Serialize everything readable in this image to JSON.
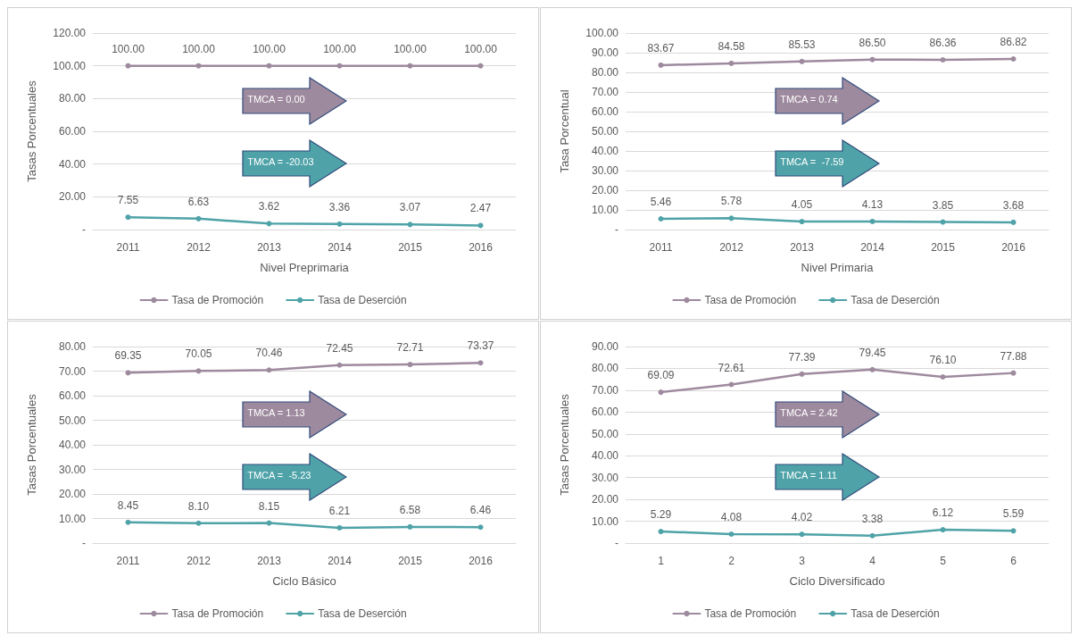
{
  "chart_data": [
    {
      "type": "line",
      "xlabel": "Nivel Preprimaria",
      "ylabel": "Tasas Porcentuales",
      "categories": [
        "2011",
        "2012",
        "2013",
        "2014",
        "2015",
        "2016"
      ],
      "series": [
        {
          "name": "Tasa de Promoción",
          "color": "#9e8a9e",
          "values": [
            100,
            100,
            100,
            100,
            100,
            100
          ],
          "value_labels": [
            "100.00",
            "100.00",
            "100.00",
            "100.00",
            "100.00",
            "100.00"
          ]
        },
        {
          "name": "Tasa de Deserción",
          "color": "#4fa3a8",
          "values": [
            7.55,
            6.63,
            3.62,
            3.36,
            3.07,
            2.47
          ],
          "value_labels": [
            "7.55",
            "6.63",
            "3.62",
            "3.36",
            "3.07",
            "2.47"
          ]
        }
      ],
      "ylim": [
        0,
        120
      ],
      "yticks": [
        {
          "value": 0,
          "label": "-"
        },
        {
          "value": 20,
          "label": "20.00"
        },
        {
          "value": 40,
          "label": "40.00"
        },
        {
          "value": 60,
          "label": "60.00"
        },
        {
          "value": 80,
          "label": "80.00"
        },
        {
          "value": 100,
          "label": "100.00"
        },
        {
          "value": 120,
          "label": "120.00"
        }
      ],
      "annotations": [
        "TMCA = 0.00",
        "TMCA = -20.03"
      ],
      "grid": "y",
      "legend": "bottom",
      "marker": "circle",
      "line_style": "solid"
    },
    {
      "type": "line",
      "xlabel": "Nivel Primaria",
      "ylabel": "Tasa Porcentual",
      "categories": [
        "2011",
        "2012",
        "2013",
        "2014",
        "2015",
        "2016"
      ],
      "series": [
        {
          "name": "Tasa de Promoción",
          "color": "#9e8a9e",
          "values": [
            83.67,
            84.58,
            85.53,
            86.5,
            86.36,
            86.82
          ],
          "value_labels": [
            "83.67",
            "84.58",
            "85.53",
            "86.50",
            "86.36",
            "86.82"
          ]
        },
        {
          "name": "Tasa de Deserción",
          "color": "#4fa3a8",
          "values": [
            5.46,
            5.78,
            4.05,
            4.13,
            3.85,
            3.68
          ],
          "value_labels": [
            "5.46",
            "5.78",
            "4.05",
            "4.13",
            "3.85",
            "3.68"
          ]
        }
      ],
      "ylim": [
        0,
        100
      ],
      "yticks": [
        {
          "value": 0,
          "label": "-"
        },
        {
          "value": 10,
          "label": "10.00"
        },
        {
          "value": 20,
          "label": "20.00"
        },
        {
          "value": 30,
          "label": "30.00"
        },
        {
          "value": 40,
          "label": "40.00"
        },
        {
          "value": 50,
          "label": "50.00"
        },
        {
          "value": 60,
          "label": "60.00"
        },
        {
          "value": 70,
          "label": "70.00"
        },
        {
          "value": 80,
          "label": "80.00"
        },
        {
          "value": 90,
          "label": "90.00"
        },
        {
          "value": 100,
          "label": "100.00"
        }
      ],
      "annotations": [
        "TMCA = 0.74",
        "TMCA =  -7.59"
      ],
      "grid": "y",
      "legend": "bottom",
      "marker": "circle",
      "line_style": "solid"
    },
    {
      "type": "line",
      "xlabel": "Ciclo Básico",
      "ylabel": "Tasas Porcentuales",
      "categories": [
        "2011",
        "2012",
        "2013",
        "2014",
        "2015",
        "2016"
      ],
      "series": [
        {
          "name": "Tasa de Promoción",
          "color": "#9e8a9e",
          "values": [
            69.35,
            70.05,
            70.46,
            72.45,
            72.71,
            73.37
          ],
          "value_labels": [
            "69.35",
            "70.05",
            "70.46",
            "72.45",
            "72.71",
            "73.37"
          ]
        },
        {
          "name": "Tasa de Deserción",
          "color": "#4fa3a8",
          "values": [
            8.45,
            8.1,
            8.15,
            6.21,
            6.58,
            6.46
          ],
          "value_labels": [
            "8.45",
            "8.10",
            "8.15",
            "6.21",
            "6.58",
            "6.46"
          ]
        }
      ],
      "ylim": [
        0,
        80
      ],
      "yticks": [
        {
          "value": 0,
          "label": "-"
        },
        {
          "value": 10,
          "label": "10.00"
        },
        {
          "value": 20,
          "label": "20.00"
        },
        {
          "value": 30,
          "label": "30.00"
        },
        {
          "value": 40,
          "label": "40.00"
        },
        {
          "value": 50,
          "label": "50.00"
        },
        {
          "value": 60,
          "label": "60.00"
        },
        {
          "value": 70,
          "label": "70.00"
        },
        {
          "value": 80,
          "label": "80.00"
        }
      ],
      "annotations": [
        "TMCA = 1.13",
        "TMCA =  -5.23"
      ],
      "grid": "y",
      "legend": "bottom",
      "marker": "circle",
      "line_style": "solid"
    },
    {
      "type": "line",
      "xlabel": "Ciclo Diversificado",
      "ylabel": "Tasas Porcentuales",
      "categories": [
        "1",
        "2",
        "3",
        "4",
        "5",
        "6"
      ],
      "series": [
        {
          "name": "Tasa de Promoción",
          "color": "#9e8a9e",
          "values": [
            69.09,
            72.61,
            77.39,
            79.45,
            76.1,
            77.88
          ],
          "value_labels": [
            "69.09",
            "72.61",
            "77.39",
            "79.45",
            "76.10",
            "77.88"
          ]
        },
        {
          "name": "Tasa de Deserción",
          "color": "#4fa3a8",
          "values": [
            5.29,
            4.08,
            4.02,
            3.38,
            6.12,
            5.59
          ],
          "value_labels": [
            "5.29",
            "4.08",
            "4.02",
            "3.38",
            "6.12",
            "5.59"
          ]
        }
      ],
      "ylim": [
        0,
        90
      ],
      "yticks": [
        {
          "value": 0,
          "label": "-"
        },
        {
          "value": 10,
          "label": "10.00"
        },
        {
          "value": 20,
          "label": "20.00"
        },
        {
          "value": 30,
          "label": "30.00"
        },
        {
          "value": 40,
          "label": "40.00"
        },
        {
          "value": 50,
          "label": "50.00"
        },
        {
          "value": 60,
          "label": "60.00"
        },
        {
          "value": 70,
          "label": "70.00"
        },
        {
          "value": 80,
          "label": "80.00"
        },
        {
          "value": 90,
          "label": "90.00"
        }
      ],
      "annotations": [
        "TMCA = 2.42",
        "TMCA = 1.11"
      ],
      "grid": "y",
      "legend": "bottom",
      "marker": "circle",
      "line_style": "solid"
    }
  ]
}
